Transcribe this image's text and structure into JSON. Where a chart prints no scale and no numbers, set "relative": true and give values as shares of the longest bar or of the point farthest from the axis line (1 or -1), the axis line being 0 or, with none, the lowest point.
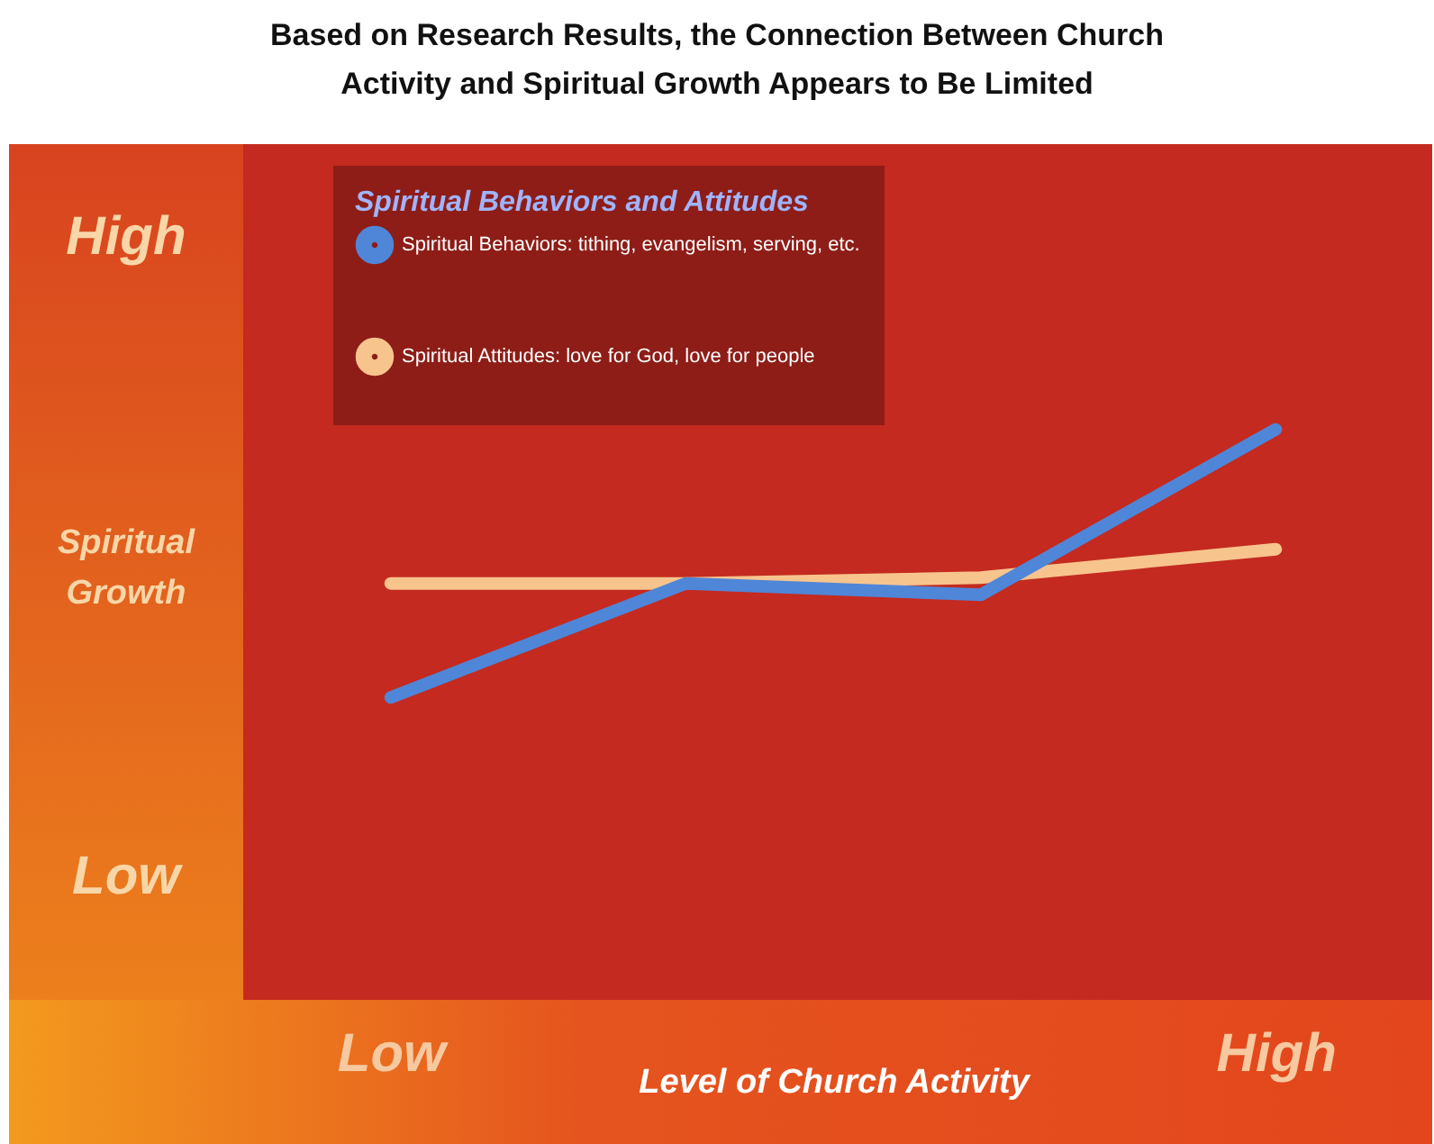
{
  "chart_data": {
    "type": "line",
    "title": "Based on Research Results, the Connection Between Church Activity and Spiritual Growth Appears to Be Limited",
    "xlabel": "Level of Church Activity",
    "ylabel": "Spiritual Growth",
    "legend_title": "Spiritual Behaviors and Attitudes",
    "annotations": [
      "High",
      "Low"
    ],
    "categories": [
      "Low",
      null,
      null,
      "High"
    ],
    "relative": true,
    "legend": "top left",
    "marker": "none",
    "line_style": "solid",
    "series": [
      {
        "name": "Spiritual Attitudes: love for God, love for people",
        "color": "#f7c48e",
        "values": [
          0.73,
          0.73,
          0.74,
          0.79
        ]
      },
      {
        "name": "Spiritual Behaviors: tithing, evangelism, serving, etc.",
        "color": "#4f86d8",
        "values": [
          0.53,
          0.73,
          0.71,
          1
        ]
      }
    ]
  }
}
